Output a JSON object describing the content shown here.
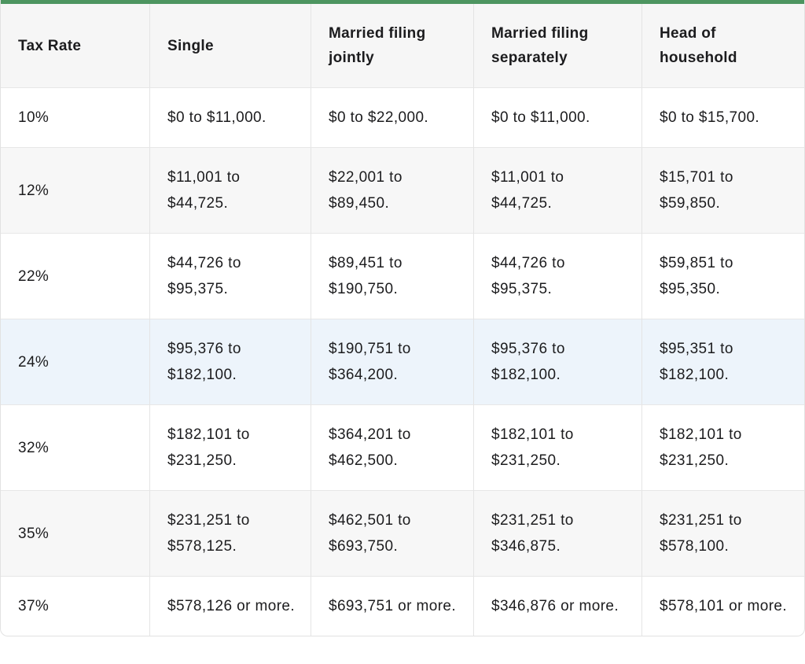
{
  "chart_data": {
    "type": "table",
    "columns": [
      "Tax Rate",
      "Single",
      "Married filing jointly",
      "Married filing separately",
      "Head of household"
    ],
    "rows": [
      {
        "cells": [
          "10%",
          "$0 to $11,000.",
          "$0 to $22,000.",
          "$0 to $11,000.",
          "$0 to $15,700."
        ],
        "highlighted": false
      },
      {
        "cells": [
          "12%",
          "$11,001 to $44,725.",
          "$22,001 to $89,450.",
          "$11,001 to $44,725.",
          "$15,701 to $59,850."
        ],
        "highlighted": false
      },
      {
        "cells": [
          "22%",
          "$44,726 to $95,375.",
          "$89,451 to $190,750.",
          "$44,726 to $95,375.",
          "$59,851 to $95,350."
        ],
        "highlighted": false
      },
      {
        "cells": [
          "24%",
          "$95,376 to $182,100.",
          "$190,751 to $364,200.",
          "$95,376 to $182,100.",
          "$95,351 to $182,100."
        ],
        "highlighted": true
      },
      {
        "cells": [
          "32%",
          "$182,101 to $231,250.",
          "$364,201 to $462,500.",
          "$182,101 to $231,250.",
          "$182,101 to $231,250."
        ],
        "highlighted": false
      },
      {
        "cells": [
          "35%",
          "$231,251 to $578,125.",
          "$462,501 to $693,750.",
          "$231,251 to $346,875.",
          "$231,251 to $578,100."
        ],
        "highlighted": false
      },
      {
        "cells": [
          "37%",
          "$578,126 or more.",
          "$693,751 or more.",
          "$346,876 or more.",
          "$578,101 or more."
        ],
        "highlighted": false
      }
    ],
    "layout": {
      "header_row": true,
      "striped_rows": true,
      "highlighted_row_index": 3
    },
    "colors": {
      "accent_top_border": "#4d9560",
      "header_background": "#f6f6f6",
      "stripe_background": "#f7f7f7",
      "highlight_background": "#edf4fb",
      "border": "#e4e4e4",
      "text": "#1c1c1e"
    }
  }
}
